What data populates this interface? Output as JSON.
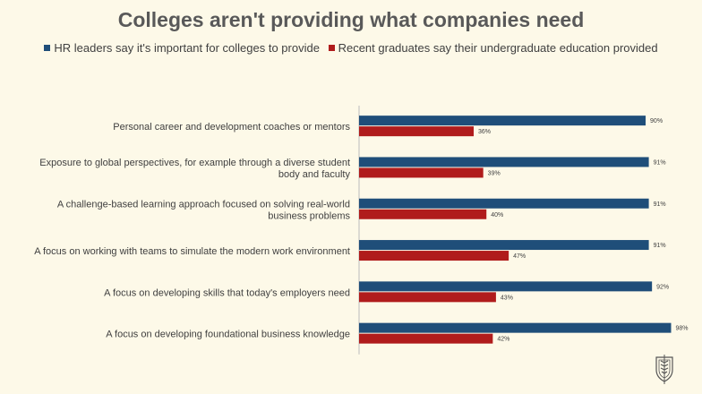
{
  "chart_data": {
    "type": "bar",
    "orientation": "horizontal",
    "title": "Colleges aren't providing what companies need",
    "categories": [
      "Personal career and development coaches or mentors",
      "Exposure to global perspectives, for example through a diverse student body and faculty",
      "A challenge-based learning approach focused on solving real-world business problems",
      "A focus on working with teams to simulate the modern work environment",
      "A focus on developing skills that today's employers need",
      "A focus on developing foundational business knowledge"
    ],
    "category_lines": [
      [
        "Personal career and development coaches or mentors"
      ],
      [
        "Exposure to global perspectives, for example through a diverse student",
        "body and faculty"
      ],
      [
        "A challenge-based learning approach focused on solving real-world",
        "business problems"
      ],
      [
        "A focus on working with teams to simulate the modern work environment"
      ],
      [
        "A focus on developing skills that today's employers need"
      ],
      [
        "A focus on developing foundational business knowledge"
      ]
    ],
    "series": [
      {
        "name": "HR leaders say it's important for colleges to provide",
        "color": "#1f4e79",
        "values": [
          90,
          91,
          91,
          91,
          92,
          98
        ],
        "labels": [
          "90%",
          "91%",
          "91%",
          "91%",
          "92%",
          "98%"
        ]
      },
      {
        "name": "Recent graduates say their undergraduate education provided",
        "color": "#b01c1c",
        "values": [
          36,
          39,
          40,
          47,
          43,
          42
        ],
        "labels": [
          "36%",
          "39%",
          "40%",
          "47%",
          "43%",
          "42%"
        ]
      }
    ],
    "xlim": [
      0,
      100
    ],
    "grid": false,
    "legend_position": "top",
    "xlabel": "",
    "ylabel": ""
  },
  "logo": {
    "icon": "wheat-shield-icon"
  }
}
